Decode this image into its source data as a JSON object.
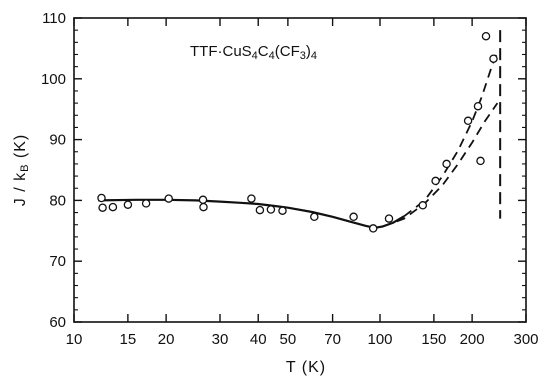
{
  "chart_data": {
    "type": "scatter",
    "annotation": {
      "prefix": "TTF·CuS",
      "s1": "4",
      "mid1": "C",
      "s2": "4",
      "mid2": "(CF",
      "s3": "3",
      "mid3": ")",
      "s4": "4"
    },
    "xlabel": "T (K)",
    "ylabel": {
      "main": "J / k",
      "sub": "B",
      "unit": " (K)"
    },
    "x_scale": "log",
    "xlim": [
      10,
      300
    ],
    "ylim": [
      60,
      110
    ],
    "x_ticks": [
      10,
      15,
      20,
      30,
      40,
      50,
      70,
      100,
      150,
      200,
      300
    ],
    "x_tick_labels": [
      "10",
      "15",
      "20",
      "30",
      "40",
      "50",
      "70",
      "100",
      "150",
      "200",
      "300"
    ],
    "y_ticks": [
      60,
      70,
      80,
      90,
      100,
      110
    ],
    "y_tick_labels": [
      "60",
      "70",
      "80",
      "90",
      "100",
      "110"
    ],
    "points": [
      [
        12.3,
        80.4
      ],
      [
        12.4,
        78.8
      ],
      [
        13.4,
        78.9
      ],
      [
        15.0,
        79.3
      ],
      [
        17.2,
        79.5
      ],
      [
        20.4,
        80.3
      ],
      [
        26.4,
        80.1
      ],
      [
        26.5,
        78.9
      ],
      [
        38.0,
        80.3
      ],
      [
        40.5,
        78.4
      ],
      [
        44.0,
        78.5
      ],
      [
        48.0,
        78.3
      ],
      [
        61.0,
        77.3
      ],
      [
        82.0,
        77.3
      ],
      [
        95.0,
        75.4
      ],
      [
        107.0,
        77.0
      ],
      [
        138.0,
        79.2
      ],
      [
        152.0,
        83.2
      ],
      [
        165.0,
        86.0
      ],
      [
        194.0,
        93.1
      ],
      [
        209.0,
        95.5
      ],
      [
        213.0,
        86.5
      ],
      [
        222.0,
        107.0
      ],
      [
        235.0,
        103.3
      ]
    ],
    "fit_solid": [
      [
        12,
        80.0
      ],
      [
        16,
        80.1
      ],
      [
        20,
        80.1
      ],
      [
        25,
        80.0
      ],
      [
        30,
        79.8
      ],
      [
        35,
        79.6
      ],
      [
        40,
        79.4
      ],
      [
        45,
        79.1
      ],
      [
        50,
        78.8
      ],
      [
        60,
        78.1
      ],
      [
        70,
        77.3
      ],
      [
        80,
        76.5
      ],
      [
        90,
        75.8
      ],
      [
        96,
        75.5
      ],
      [
        102,
        75.7
      ],
      [
        110,
        76.3
      ],
      [
        120,
        77.4
      ]
    ],
    "fit_dashed_upper": [
      [
        120,
        77.4
      ],
      [
        140,
        80.0
      ],
      [
        160,
        84.0
      ],
      [
        180,
        88.2
      ],
      [
        200,
        93.0
      ],
      [
        215,
        97.0
      ],
      [
        230,
        101.5
      ],
      [
        242,
        104.5
      ]
    ],
    "fit_dashed_lower": [
      [
        102,
        75.7
      ],
      [
        120,
        77.0
      ],
      [
        140,
        79.5
      ],
      [
        160,
        82.5
      ],
      [
        180,
        86.0
      ],
      [
        200,
        89.5
      ],
      [
        220,
        93.0
      ],
      [
        242,
        96.0
      ]
    ],
    "vertical_dashed_x": 247,
    "vertical_dashed_yrange": [
      77,
      108
    ],
    "grid": false,
    "legend": "none"
  }
}
